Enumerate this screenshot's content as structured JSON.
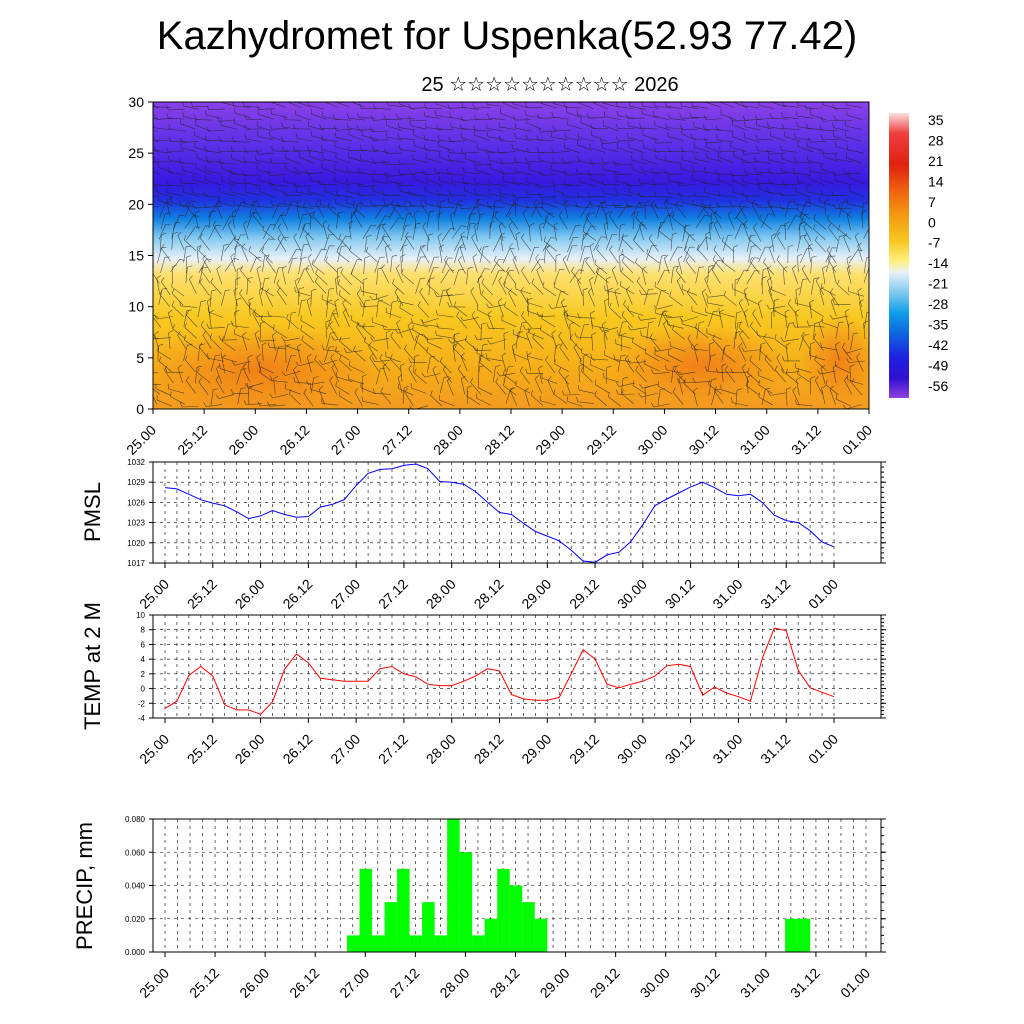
{
  "header": {
    "title": "Kazhydromet for Uspenka(52.93 77.42)",
    "subtitle": "25 ☆☆☆☆☆☆☆☆☆☆ 2026"
  },
  "colors": {
    "pmsl_line": "#0000ff",
    "temp_line": "#ff0000",
    "precip_bar": "#00ff00",
    "grid": "#000000"
  },
  "time_labels": [
    "25.00",
    "25.12",
    "26.00",
    "26.12",
    "27.00",
    "27.12",
    "28.00",
    "28.12",
    "29.00",
    "29.12",
    "30.00",
    "30.12",
    "31.00",
    "31.12",
    "01.00"
  ],
  "chart_data": [
    {
      "type": "heatmap",
      "title": "Kazhydromet for Uspenka(52.93 77.42)",
      "xlabel": "",
      "ylabel": "",
      "ylim": [
        0,
        30
      ],
      "yticks": [
        0,
        5,
        10,
        15,
        20,
        25,
        30
      ],
      "description": "Temperature cross-section with wind barbs, height 0-30 km",
      "colorbar": {
        "labels": [
          "35",
          "28",
          "21",
          "14",
          "7",
          "0",
          "-7",
          "-14",
          "-21",
          "-28",
          "-35",
          "-42",
          "-49",
          "-56"
        ],
        "values": [
          35,
          28,
          21,
          14,
          7,
          0,
          -7,
          -14,
          -21,
          -28,
          -35,
          -42,
          -49,
          -56
        ]
      },
      "layers": [
        {
          "height": 0,
          "temp": 10
        },
        {
          "height": 5,
          "temp": 7
        },
        {
          "height": 10,
          "temp": 0
        },
        {
          "height": 14,
          "temp": -10
        },
        {
          "height": 17,
          "temp": -25
        },
        {
          "height": 20,
          "temp": -45
        },
        {
          "height": 22,
          "temp": -56
        },
        {
          "height": 25,
          "temp": -52
        },
        {
          "height": 30,
          "temp": -48
        }
      ]
    },
    {
      "type": "line",
      "ylabel": "PMSL",
      "ylim": [
        1017,
        1032
      ],
      "yticks": [
        1017,
        1020,
        1023,
        1026,
        1029,
        1032
      ],
      "x": [
        0,
        3,
        6,
        9,
        12,
        15,
        18,
        21,
        24,
        27,
        30,
        33,
        36,
        39,
        42,
        45,
        48,
        51,
        54,
        57,
        60,
        63,
        66,
        69,
        72,
        75,
        78,
        81,
        84,
        87,
        90,
        93,
        96,
        99,
        102,
        105,
        108,
        111,
        114,
        117,
        120,
        123,
        126,
        129,
        132,
        135,
        138,
        141,
        144
      ],
      "series": [
        {
          "name": "PMSL",
          "values": [
            1028.2,
            1028.0,
            1027.2,
            1026.4,
            1025.9,
            1025.5,
            1024.6,
            1023.6,
            1024.0,
            1024.8,
            1024.2,
            1023.8,
            1023.9,
            1025.3,
            1025.7,
            1026.4,
            1028.5,
            1030.3,
            1030.9,
            1031.0,
            1031.5,
            1031.7,
            1031.0,
            1029.1,
            1029.0,
            1028.7,
            1027.6,
            1026.0,
            1024.5,
            1024.2,
            1022.9,
            1021.7,
            1021.0,
            1020.3,
            1018.9,
            1017.3,
            1017.1,
            1018.2,
            1018.6,
            1020.2,
            1022.7,
            1025.5,
            1026.5,
            1027.4,
            1028.3,
            1029.0,
            1028.2,
            1027.2,
            1027.0
          ]
        }
      ],
      "extension": {
        "x": [
          147,
          150,
          153,
          156,
          159,
          162,
          165,
          168
        ],
        "values": [
          1027.2,
          1026.0,
          1024.1,
          1023.3,
          1023.0,
          1021.8,
          1020.1,
          1019.4
        ]
      }
    },
    {
      "type": "line",
      "ylabel": "TEMP at 2 M",
      "ylim": [
        -4,
        10
      ],
      "yticks": [
        -4,
        -2,
        0,
        2,
        4,
        6,
        8,
        10
      ],
      "x": [
        0,
        3,
        6,
        9,
        12,
        15,
        18,
        21,
        24,
        27,
        30,
        33,
        36,
        39,
        42,
        45,
        48,
        51,
        54,
        57,
        60,
        63,
        66,
        69,
        72,
        75,
        78,
        81,
        84,
        87,
        90,
        93,
        96,
        99,
        102,
        105,
        108,
        111,
        114,
        117,
        120,
        123,
        126,
        129,
        132,
        135,
        138,
        141,
        144,
        147,
        150,
        153,
        156,
        159,
        162,
        165,
        168
      ],
      "series": [
        {
          "name": "TEMP at 2 M",
          "values": [
            -2.7,
            -1.7,
            1.8,
            3.0,
            1.7,
            -2.2,
            -2.9,
            -2.9,
            -3.5,
            -1.8,
            2.6,
            4.7,
            3.5,
            1.4,
            1.2,
            1.0,
            1.0,
            1.0,
            2.7,
            3.0,
            2.0,
            1.6,
            0.6,
            0.4,
            0.4,
            1.0,
            1.7,
            2.7,
            2.4,
            -0.8,
            -1.4,
            -1.6,
            -1.6,
            -1.2,
            2.0,
            5.3,
            4.0,
            0.6,
            0.1,
            0.6,
            1.0,
            1.7,
            3.1,
            3.3,
            3.0,
            -0.9,
            0.2,
            -0.6,
            -1.1,
            -1.7,
            4.1,
            8.2,
            7.9,
            2.5,
            0.1,
            -0.5,
            -1.1
          ]
        }
      ]
    },
    {
      "type": "bar",
      "ylabel": "PRECIP, mm",
      "ylim": [
        0,
        0.08
      ],
      "yticks": [
        "0.000",
        "0.020",
        "0.040",
        "0.060",
        "0.080"
      ],
      "bar_hours": [
        45,
        48,
        51,
        54,
        57,
        60,
        63,
        66,
        69,
        72,
        75,
        78,
        81,
        84,
        87,
        90,
        93,
        96,
        99,
        102,
        105,
        108,
        111,
        114,
        117,
        120,
        123,
        126,
        129
      ],
      "values": [
        0.01,
        0.05,
        0.01,
        0.03,
        0.05,
        0.01,
        0.03,
        0.01,
        0.08,
        0.06,
        0.01,
        0.02,
        0.05,
        0.04,
        0.03,
        0.02,
        0,
        0,
        0,
        0,
        0,
        0,
        0,
        0,
        0,
        0,
        0,
        0,
        0
      ],
      "extra_bars": [
        {
          "hour": 150,
          "value": 0.02
        },
        {
          "hour": 153,
          "value": 0.02
        }
      ]
    }
  ]
}
